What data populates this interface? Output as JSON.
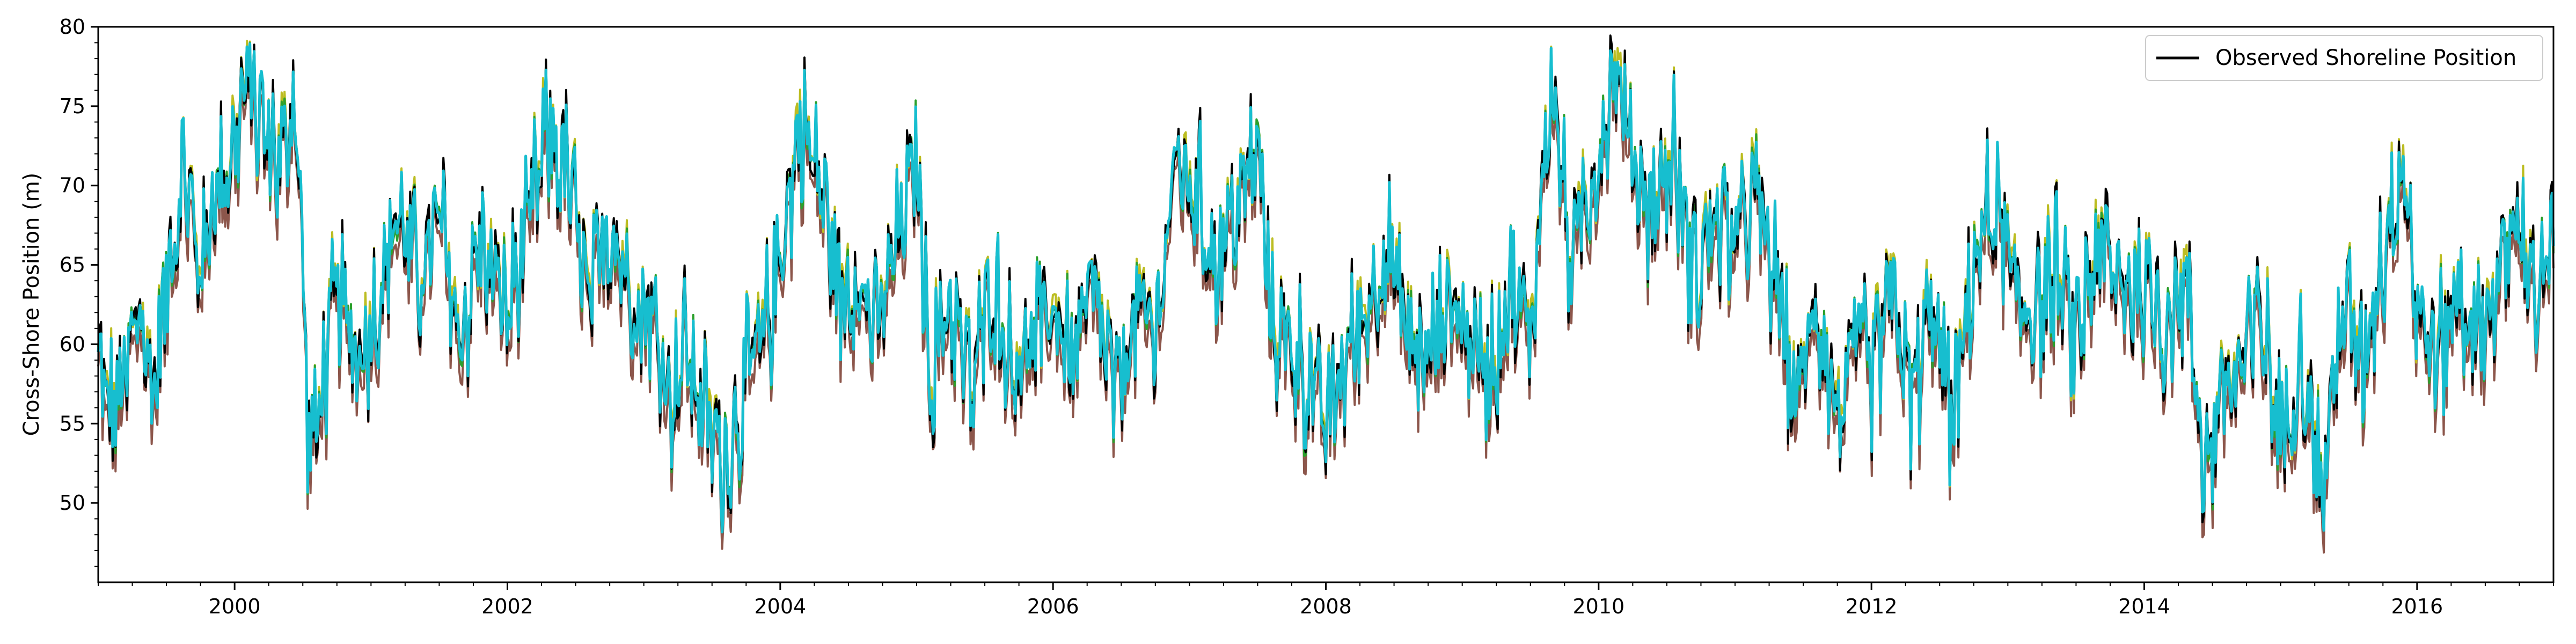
{
  "chart_data": {
    "type": "line",
    "title": "",
    "xlabel": "",
    "ylabel": "Cross-Shore Position (m)",
    "xlim": [
      1999.0,
      2017.0
    ],
    "ylim": [
      45.0,
      80.0
    ],
    "x_ticks": [
      2000,
      2002,
      2004,
      2006,
      2008,
      2010,
      2012,
      2014,
      2016
    ],
    "x_tick_labels": [
      "2000",
      "2002",
      "2004",
      "2006",
      "2008",
      "2010",
      "2012",
      "2014",
      "2016"
    ],
    "y_ticks": [
      50,
      55,
      60,
      65,
      70,
      75,
      80
    ],
    "y_tick_labels": [
      "50",
      "55",
      "60",
      "65",
      "70",
      "75",
      "80"
    ],
    "grid": false,
    "legend": {
      "placement": "top-right",
      "entries": [
        "Observed Shoreline Position"
      ]
    },
    "colors": {
      "observed": "#000000",
      "model_runs": [
        "#8c564b",
        "#bcbd22",
        "#2ca02c",
        "#17becf"
      ]
    },
    "series": [
      {
        "name": "Observed Shoreline Position",
        "x": [
          1999.0,
          1999.1,
          1999.2,
          1999.3,
          1999.4,
          1999.5,
          1999.62,
          1999.75,
          1999.85,
          2000.0,
          2000.1,
          2000.22,
          2000.35,
          2000.45,
          2000.55,
          2000.62,
          2000.75,
          2000.9,
          2001.05,
          2001.2,
          2001.35,
          2001.5,
          2001.65,
          2001.8,
          2002.0,
          2002.15,
          2002.3,
          2002.45,
          2002.6,
          2002.75,
          2002.9,
          2003.05,
          2003.2,
          2003.3,
          2003.45,
          2003.6,
          2003.75,
          2003.9,
          2004.05,
          2004.15,
          2004.3,
          2004.45,
          2004.55,
          2004.7,
          2004.85,
          2005.0,
          2005.1,
          2005.25,
          2005.4,
          2005.55,
          2005.7,
          2005.85,
          2006.0,
          2006.15,
          2006.3,
          2006.45,
          2006.6,
          2006.75,
          2006.9,
          2007.05,
          2007.2,
          2007.35,
          2007.5,
          2007.6,
          2007.75,
          2007.9,
          2008.0,
          2008.15,
          2008.3,
          2008.45,
          2008.6,
          2008.75,
          2008.9,
          2009.05,
          2009.2,
          2009.35,
          2009.5,
          2009.65,
          2009.8,
          2010.0,
          2010.12,
          2010.25,
          2010.4,
          2010.55,
          2010.7,
          2010.85,
          2011.0,
          2011.15,
          2011.3,
          2011.45,
          2011.6,
          2011.75,
          2011.9,
          2012.0,
          2012.15,
          2012.3,
          2012.45,
          2012.6,
          2012.75,
          2012.9,
          2013.05,
          2013.2,
          2013.35,
          2013.5,
          2013.65,
          2013.8,
          2014.0,
          2014.15,
          2014.3,
          2014.45,
          2014.55,
          2014.7,
          2014.85,
          2015.0,
          2015.15,
          2015.3,
          2015.45,
          2015.6,
          2015.75,
          2015.9,
          2016.0,
          2016.15,
          2016.3,
          2016.45,
          2016.6,
          2016.75,
          2016.9,
          2017.0
        ],
        "y": [
          58.5,
          55.5,
          57.8,
          62.5,
          57.0,
          63.5,
          71.2,
          64.5,
          69.8,
          72.5,
          76.8,
          73.2,
          71.5,
          75.8,
          53.0,
          55.8,
          63.5,
          59.2,
          62.5,
          68.5,
          64.0,
          68.0,
          60.0,
          66.5,
          62.0,
          67.0,
          73.5,
          70.5,
          62.0,
          68.0,
          63.5,
          62.0,
          56.5,
          60.0,
          55.5,
          52.5,
          57.5,
          61.0,
          68.5,
          74.0,
          70.0,
          62.5,
          65.0,
          60.5,
          66.0,
          72.0,
          58.0,
          63.0,
          57.0,
          64.0,
          58.5,
          60.0,
          62.5,
          59.0,
          63.5,
          56.5,
          62.0,
          60.5,
          71.5,
          69.5,
          65.0,
          68.5,
          72.5,
          61.5,
          60.0,
          57.0,
          55.0,
          59.5,
          62.0,
          66.5,
          60.5,
          59.0,
          63.0,
          60.5,
          58.5,
          63.5,
          60.5,
          77.0,
          65.0,
          72.0,
          78.0,
          71.5,
          68.5,
          72.0,
          64.5,
          68.0,
          66.5,
          69.5,
          64.0,
          56.0,
          63.0,
          55.5,
          60.0,
          58.0,
          63.5,
          56.5,
          62.5,
          55.0,
          65.0,
          69.0,
          63.0,
          62.5,
          64.5,
          60.0,
          66.5,
          64.0,
          63.5,
          61.5,
          64.0,
          52.0,
          56.5,
          58.5,
          62.0,
          54.0,
          60.0,
          50.5,
          62.5,
          59.0,
          66.0,
          72.0,
          62.0,
          59.0,
          63.5,
          60.5,
          64.0,
          68.0,
          62.5,
          66.5
        ]
      }
    ]
  }
}
